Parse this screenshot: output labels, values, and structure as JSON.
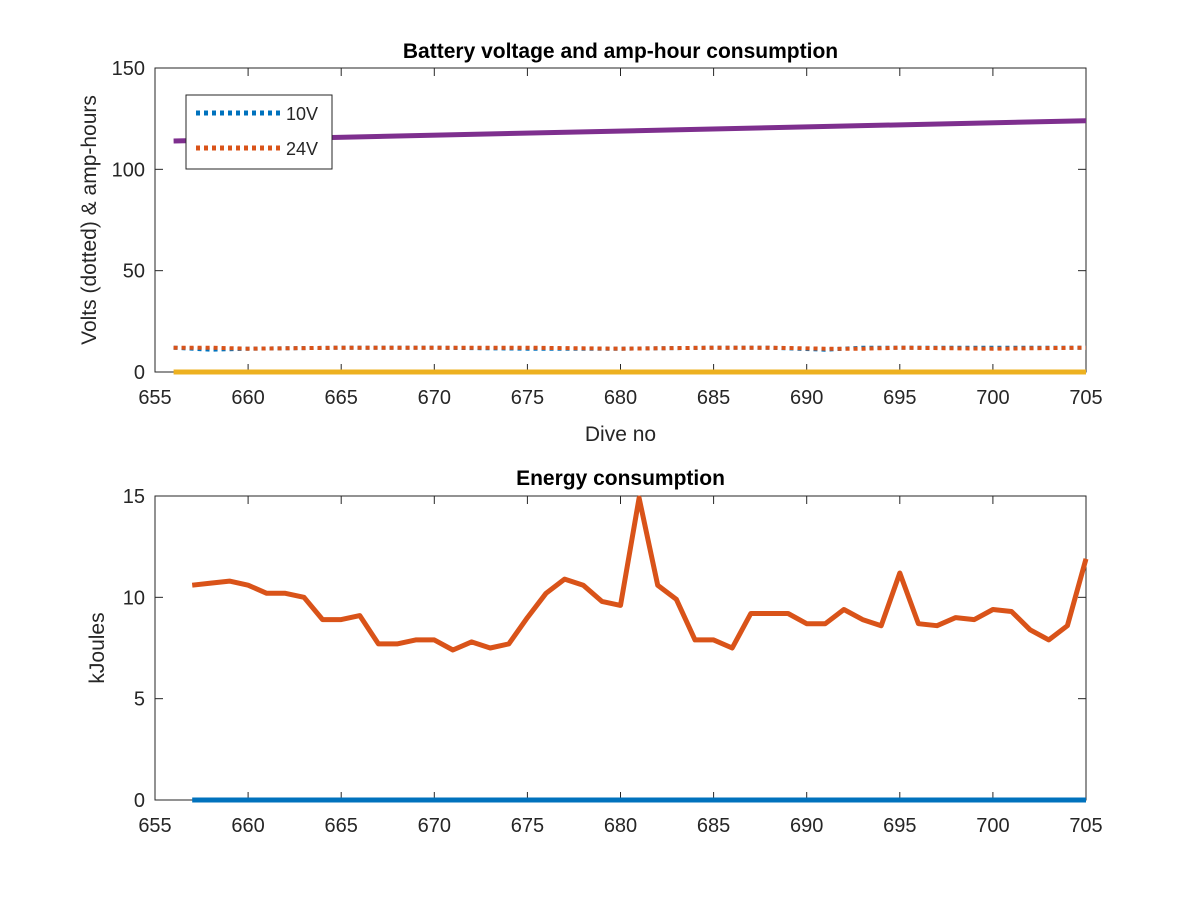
{
  "chart_data": [
    {
      "type": "line",
      "title": "Battery voltage and amp-hour consumption",
      "xlabel": "Dive no",
      "ylabel": "Volts (dotted) & amp-hours",
      "xlim": [
        655,
        705
      ],
      "ylim": [
        0,
        150
      ],
      "xticks": [
        655,
        660,
        665,
        670,
        675,
        680,
        685,
        690,
        695,
        700,
        705
      ],
      "yticks": [
        0,
        50,
        100,
        150
      ],
      "grid": false,
      "legend_position": "top-left",
      "series": [
        {
          "name": "10V",
          "style": "dotted",
          "color": "#0072BD",
          "x": [
            656,
            658,
            660,
            665,
            670,
            675,
            680,
            685,
            688,
            691,
            693,
            695,
            700,
            705
          ],
          "y": [
            12,
            11,
            11.5,
            12,
            12,
            11.5,
            11.5,
            12,
            12,
            11,
            12,
            12,
            12,
            12
          ]
        },
        {
          "name": "24V",
          "style": "dotted",
          "color": "#D95319",
          "x": [
            656,
            658,
            660,
            665,
            670,
            675,
            680,
            685,
            688,
            691,
            693,
            695,
            700,
            705
          ],
          "y": [
            12,
            12,
            11.5,
            12,
            12,
            12,
            11.5,
            12,
            12,
            11.5,
            11.5,
            12,
            11.5,
            12
          ]
        },
        {
          "style": "solid",
          "color": "#7E2F8E",
          "x": [
            656,
            705
          ],
          "y": [
            114,
            124
          ]
        },
        {
          "style": "solid",
          "color": "#EDB120",
          "x": [
            656,
            705
          ],
          "y": [
            0,
            0
          ]
        }
      ]
    },
    {
      "type": "line",
      "title": "Energy consumption",
      "xlabel": "",
      "ylabel": "kJoules",
      "xlim": [
        655,
        705
      ],
      "ylim": [
        0,
        15
      ],
      "xticks": [
        655,
        660,
        665,
        670,
        675,
        680,
        685,
        690,
        695,
        700,
        705
      ],
      "yticks": [
        0,
        5,
        10,
        15
      ],
      "grid": false,
      "series": [
        {
          "style": "solid",
          "color": "#D95319",
          "x": [
            657,
            658,
            659,
            660,
            661,
            662,
            663,
            664,
            665,
            666,
            667,
            668,
            669,
            670,
            671,
            672,
            673,
            674,
            675,
            676,
            677,
            678,
            679,
            680,
            681,
            682,
            683,
            684,
            685,
            686,
            687,
            688,
            689,
            690,
            691,
            692,
            693,
            694,
            695,
            696,
            697,
            698,
            699,
            700,
            701,
            702,
            703,
            704,
            705
          ],
          "y": [
            10.6,
            10.7,
            10.8,
            10.6,
            10.2,
            10.2,
            10.0,
            8.9,
            8.9,
            9.1,
            7.7,
            7.7,
            7.9,
            7.9,
            7.4,
            7.8,
            7.5,
            7.7,
            9.0,
            10.2,
            10.9,
            10.6,
            9.8,
            9.6,
            14.9,
            10.6,
            9.9,
            7.9,
            7.9,
            7.5,
            9.2,
            9.2,
            9.2,
            8.7,
            8.7,
            9.4,
            8.9,
            8.6,
            11.2,
            8.7,
            8.6,
            9.0,
            8.9,
            9.4,
            9.3,
            8.4,
            7.9,
            8.6,
            11.9
          ]
        },
        {
          "style": "solid",
          "color": "#0072BD",
          "x": [
            657,
            705
          ],
          "y": [
            0,
            0
          ]
        }
      ]
    }
  ]
}
